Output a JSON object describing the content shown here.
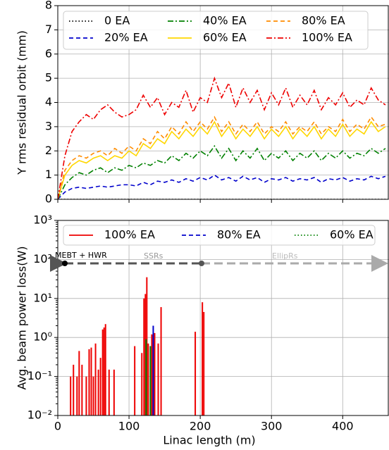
{
  "chart_data": [
    {
      "type": "line",
      "ylabel": "Y rms residual orbit (mm)",
      "xlim": [
        0,
        465
      ],
      "ylim": [
        0,
        8
      ],
      "xticks": [
        0,
        100,
        200,
        300,
        400
      ],
      "yticks": [
        0,
        1,
        2,
        3,
        4,
        5,
        6,
        7,
        8
      ],
      "grid": true,
      "legend": "upper center",
      "x": [
        0,
        10,
        20,
        30,
        40,
        50,
        60,
        70,
        80,
        90,
        100,
        110,
        120,
        130,
        140,
        150,
        160,
        170,
        180,
        190,
        200,
        210,
        220,
        230,
        240,
        250,
        260,
        270,
        280,
        290,
        300,
        310,
        320,
        330,
        340,
        350,
        360,
        370,
        380,
        390,
        400,
        410,
        420,
        430,
        440,
        450,
        460
      ],
      "series": [
        {
          "name": "0 EA",
          "color": "#000000",
          "linestyle": "dotted",
          "values": [
            0,
            0,
            0,
            0,
            0,
            0,
            0,
            0,
            0,
            0,
            0,
            0,
            0,
            0,
            0,
            0,
            0,
            0,
            0,
            0,
            0,
            0,
            0,
            0,
            0,
            0,
            0,
            0,
            0,
            0,
            0,
            0,
            0,
            0,
            0,
            0,
            0,
            0,
            0,
            0,
            0,
            0,
            0,
            0,
            0,
            0,
            0
          ]
        },
        {
          "name": "20% EA",
          "color": "#0000cc",
          "linestyle": "dashed",
          "values": [
            0,
            0.3,
            0.45,
            0.5,
            0.45,
            0.5,
            0.55,
            0.5,
            0.55,
            0.6,
            0.6,
            0.55,
            0.7,
            0.6,
            0.75,
            0.7,
            0.8,
            0.7,
            0.85,
            0.75,
            0.9,
            0.8,
            1.0,
            0.8,
            0.9,
            0.75,
            0.95,
            0.8,
            0.9,
            0.7,
            0.85,
            0.8,
            0.9,
            0.75,
            0.85,
            0.8,
            0.9,
            0.7,
            0.85,
            0.8,
            0.9,
            0.75,
            0.85,
            0.8,
            0.95,
            0.85,
            0.95
          ]
        },
        {
          "name": "40% EA",
          "color": "#008000",
          "linestyle": "dashdot",
          "values": [
            0,
            0.6,
            0.9,
            1.1,
            1.0,
            1.2,
            1.3,
            1.1,
            1.3,
            1.2,
            1.4,
            1.3,
            1.5,
            1.4,
            1.6,
            1.5,
            1.8,
            1.6,
            1.9,
            1.7,
            2.0,
            1.8,
            2.2,
            1.7,
            2.1,
            1.6,
            2.0,
            1.7,
            2.1,
            1.6,
            1.9,
            1.7,
            2.0,
            1.6,
            1.9,
            1.7,
            2.0,
            1.6,
            1.9,
            1.7,
            2.0,
            1.7,
            1.9,
            1.8,
            2.1,
            1.9,
            2.1
          ]
        },
        {
          "name": "60% EA",
          "color": "#ffd700",
          "linestyle": "solid",
          "values": [
            0,
            1.0,
            1.4,
            1.6,
            1.5,
            1.7,
            1.8,
            1.6,
            1.8,
            1.7,
            2.0,
            1.8,
            2.3,
            2.1,
            2.5,
            2.3,
            2.8,
            2.5,
            2.9,
            2.6,
            3.0,
            2.7,
            3.2,
            2.6,
            3.0,
            2.5,
            2.9,
            2.6,
            3.0,
            2.5,
            2.9,
            2.6,
            3.0,
            2.5,
            2.9,
            2.6,
            3.0,
            2.5,
            2.9,
            2.6,
            3.1,
            2.6,
            2.9,
            2.7,
            3.2,
            2.8,
            3.0
          ]
        },
        {
          "name": "80% EA",
          "color": "#ff8c00",
          "linestyle": "dashed",
          "values": [
            0,
            1.2,
            1.6,
            1.8,
            1.7,
            1.9,
            2.0,
            1.8,
            2.1,
            1.9,
            2.2,
            2.0,
            2.5,
            2.3,
            2.8,
            2.5,
            3.0,
            2.7,
            3.2,
            2.8,
            3.2,
            2.9,
            3.4,
            2.8,
            3.2,
            2.7,
            3.1,
            2.8,
            3.2,
            2.7,
            3.0,
            2.8,
            3.2,
            2.7,
            3.0,
            2.8,
            3.2,
            2.7,
            3.0,
            2.8,
            3.3,
            2.8,
            3.1,
            2.9,
            3.4,
            3.0,
            3.1
          ]
        },
        {
          "name": "100% EA",
          "color": "#ee0000",
          "linestyle": "dashdot",
          "values": [
            0,
            1.8,
            2.8,
            3.2,
            3.5,
            3.3,
            3.7,
            3.9,
            3.6,
            3.4,
            3.5,
            3.7,
            4.3,
            3.8,
            4.2,
            3.5,
            4.0,
            3.8,
            4.5,
            3.6,
            4.2,
            4.0,
            5.0,
            4.2,
            4.8,
            3.8,
            4.6,
            4.0,
            4.5,
            3.7,
            4.4,
            3.9,
            4.6,
            3.8,
            4.3,
            3.9,
            4.5,
            3.7,
            4.2,
            3.9,
            4.4,
            3.8,
            4.1,
            3.9,
            4.6,
            4.1,
            3.9
          ]
        }
      ]
    },
    {
      "type": "bar",
      "ylabel": "Avg. beam power loss(W)",
      "xlabel": "Linac length (m)",
      "log": true,
      "xlim": [
        0,
        465
      ],
      "ylim": [
        0.01,
        1000
      ],
      "xticks": [
        0,
        100,
        200,
        300,
        400
      ],
      "yticks": [
        {
          "value": 0.01,
          "label": "10⁻²"
        },
        {
          "value": 0.1,
          "label": "10⁻¹"
        },
        {
          "value": 1,
          "label": "10⁰"
        },
        {
          "value": 10,
          "label": "10¹"
        },
        {
          "value": 100,
          "label": "10²"
        },
        {
          "value": 1000,
          "label": "10³"
        }
      ],
      "grid": true,
      "legend": "upper center",
      "annotations": [
        "MEBT + HWR",
        "SSRs",
        "EllipRs"
      ],
      "series": [
        {
          "name": "100% EA",
          "color": "#ee0000",
          "linestyle": "solid",
          "x": [
            18,
            22,
            27,
            30,
            34,
            40,
            44,
            47,
            50,
            53,
            57,
            60,
            63,
            65,
            67,
            72,
            79,
            108,
            118,
            121,
            123,
            125,
            127,
            132,
            136,
            141,
            145,
            193,
            203,
            205
          ],
          "values": [
            0.1,
            0.2,
            0.1,
            0.45,
            0.2,
            0.1,
            0.5,
            0.55,
            0.1,
            0.7,
            0.15,
            0.3,
            1.6,
            1.8,
            2.2,
            0.15,
            0.15,
            0.6,
            0.4,
            10,
            13,
            35,
            0.7,
            1.2,
            1.3,
            0.7,
            6,
            1.4,
            8,
            4.5
          ]
        },
        {
          "name": "80% EA",
          "color": "#0000cc",
          "linestyle": "dashed",
          "x": [
            134
          ],
          "values": [
            2
          ]
        },
        {
          "name": "60% EA",
          "color": "#008000",
          "linestyle": "dotted",
          "x": [
            124,
            130
          ],
          "values": [
            0.9,
            0.6
          ]
        }
      ]
    }
  ]
}
